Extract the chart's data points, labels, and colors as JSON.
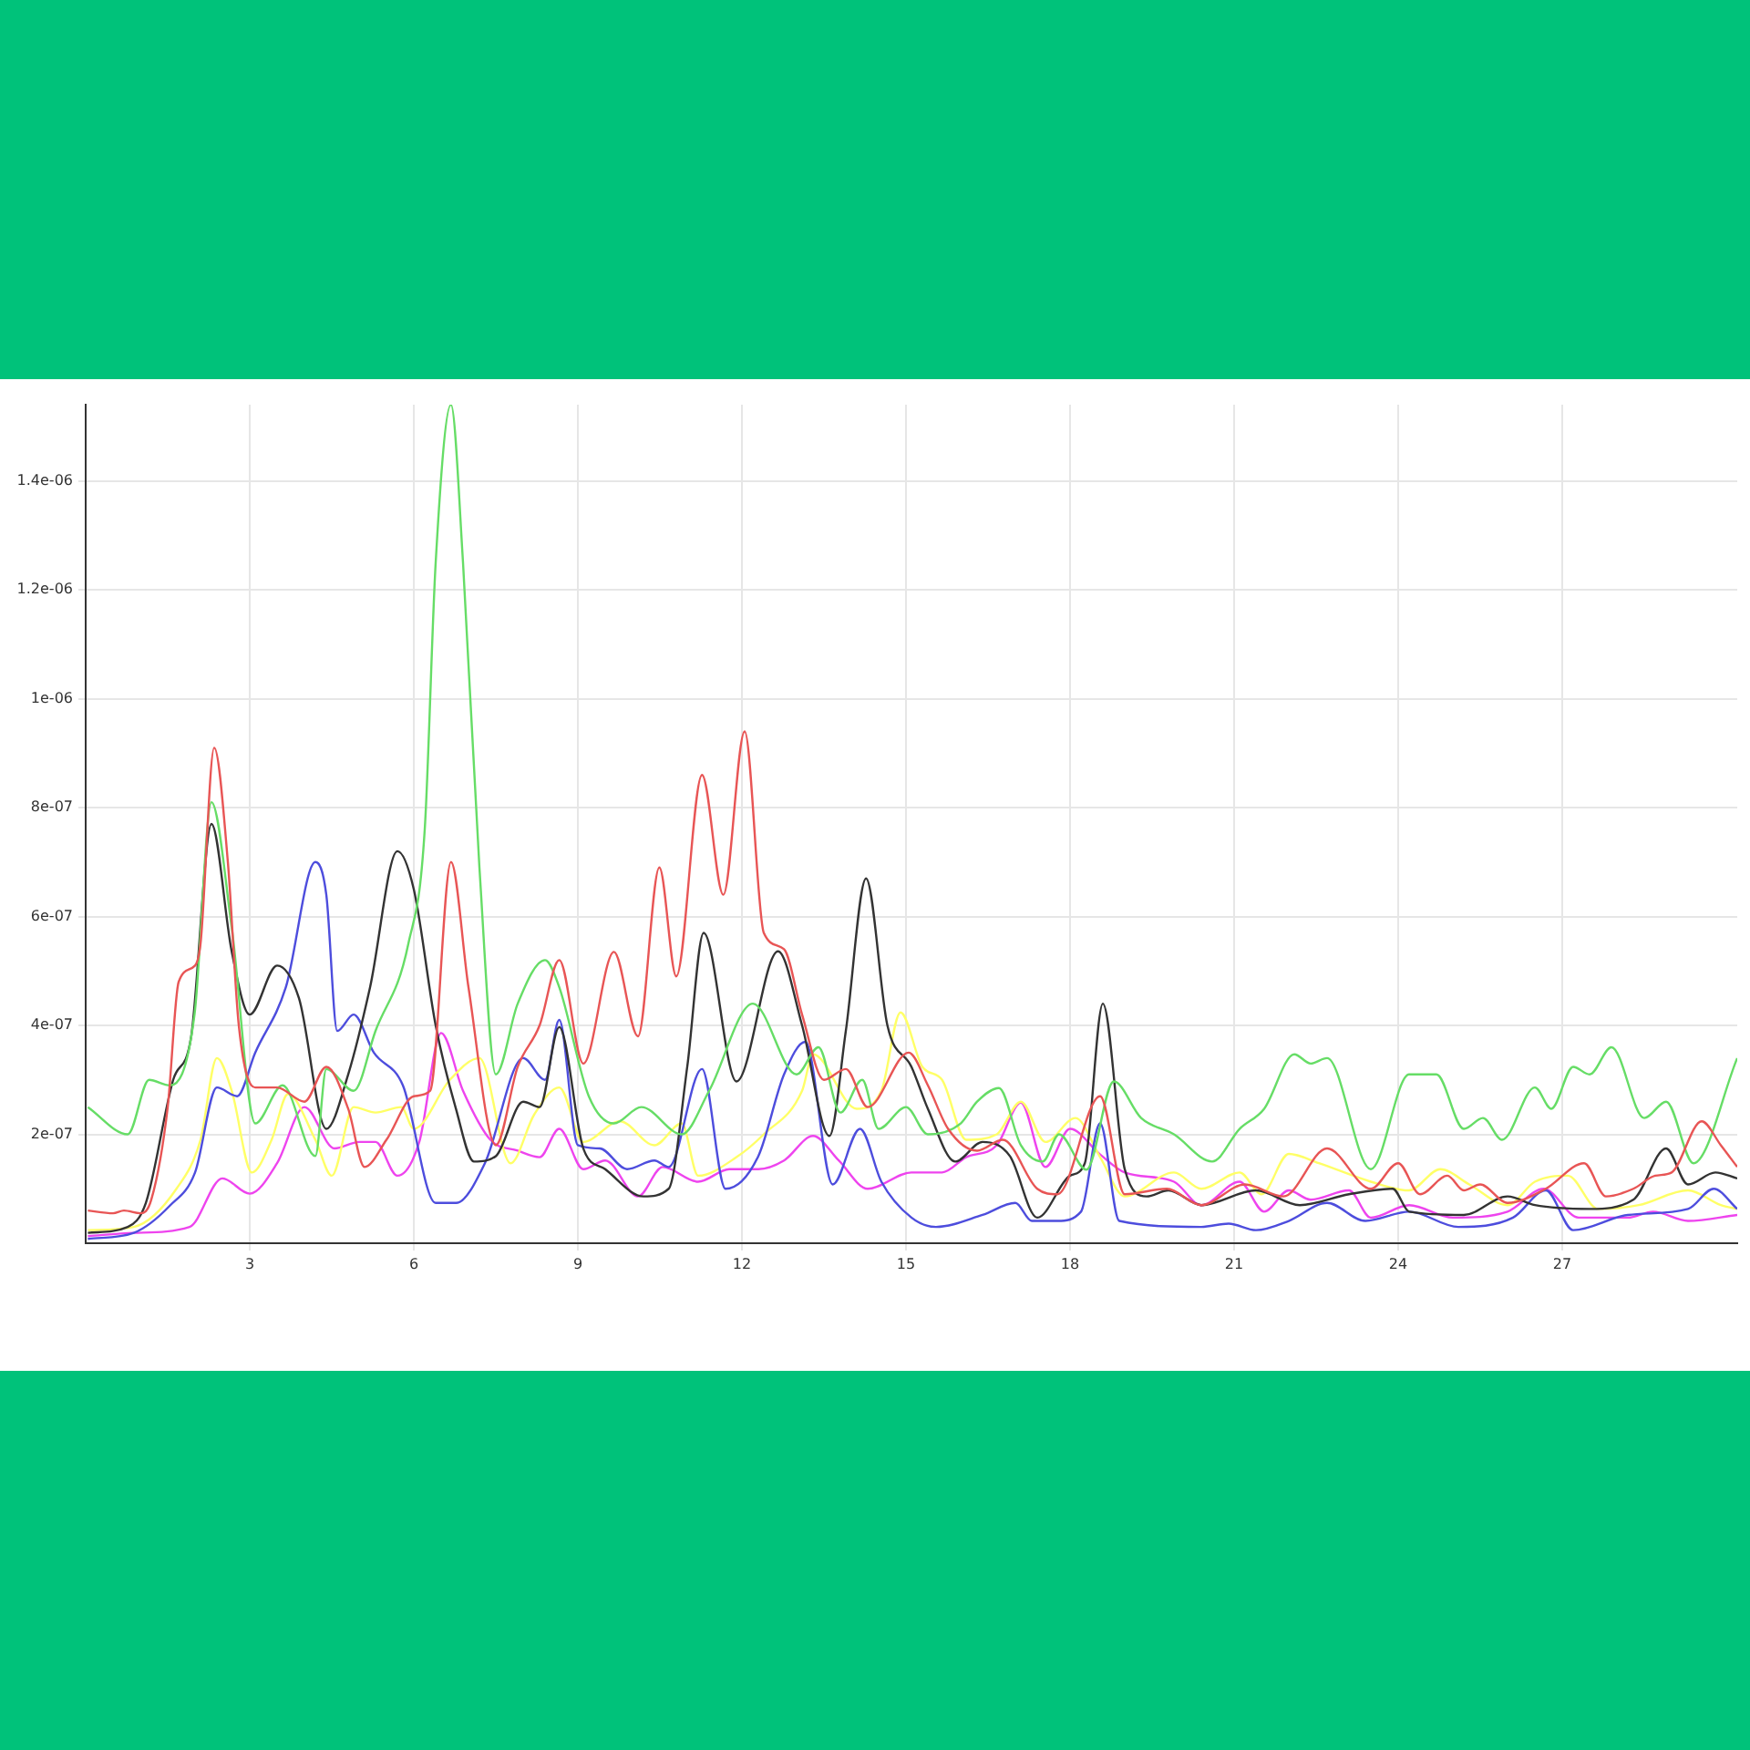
{
  "chart_data": {
    "type": "line",
    "xlim": [
      0,
      30.2
    ],
    "ylim": [
      0,
      1.54e-06
    ],
    "xticks": [
      3,
      6,
      9,
      12,
      15,
      18,
      21,
      24,
      27
    ],
    "yticks": [
      {
        "value": 2e-07,
        "label": "2e-07"
      },
      {
        "value": 4e-07,
        "label": "4e-07"
      },
      {
        "value": 6e-07,
        "label": "6e-07"
      },
      {
        "value": 8e-07,
        "label": "8e-07"
      },
      {
        "value": 1e-06,
        "label": "1e-06"
      },
      {
        "value": 1.2e-06,
        "label": "1.2e-06"
      },
      {
        "value": 1.4e-06,
        "label": "1.4e-06"
      }
    ],
    "grid": true,
    "series": [
      {
        "color": "#e85555",
        "x": [
          0.04,
          0.5,
          0.7,
          1.0,
          1.2,
          1.5,
          1.7,
          2.0,
          2.1,
          2.35,
          2.6,
          2.8,
          3.1,
          3.5,
          4.0,
          4.4,
          4.8,
          5.1,
          5.5,
          6.0,
          6.3,
          6.68,
          7.0,
          7.5,
          7.9,
          8.3,
          8.66,
          9.1,
          9.66,
          10.1,
          10.49,
          10.8,
          11.27,
          11.66,
          12.05,
          12.4,
          12.77,
          13.1,
          13.5,
          13.9,
          14.3,
          15.05,
          15.4,
          15.77,
          16.3,
          16.77,
          17.4,
          17.77,
          18.55,
          19.0,
          19.77,
          20.4,
          21.2,
          21.9,
          22.7,
          23.5,
          24.0,
          24.4,
          24.9,
          25.2,
          25.5,
          26.0,
          26.7,
          27.4,
          27.8,
          28.3,
          28.7,
          29.0,
          29.55,
          29.9,
          30.2
        ],
        "values": [
          6e-08,
          5.5e-08,
          6e-08,
          5.5e-08,
          8e-08,
          2.5e-07,
          4.8e-07,
          5.1e-07,
          5.5e-07,
          9.1e-07,
          7e-07,
          4e-07,
          2.86e-07,
          2.86e-07,
          2.6e-07,
          3.24e-07,
          2.47e-07,
          1.4e-07,
          1.9e-07,
          2.7e-07,
          2.8e-07,
          7e-07,
          4.7e-07,
          1.8e-07,
          3.24e-07,
          4e-07,
          5.2e-07,
          3.3e-07,
          5.35e-07,
          3.8e-07,
          6.9e-07,
          4.9e-07,
          8.6e-07,
          6.4e-07,
          9.4e-07,
          5.7e-07,
          5.4e-07,
          4.2e-07,
          3e-07,
          3.2e-07,
          2.5e-07,
          3.5e-07,
          2.9e-07,
          2.1e-07,
          1.7e-07,
          1.9e-07,
          1e-07,
          9e-08,
          2.7e-07,
          9e-08,
          1e-07,
          7e-08,
          1.08e-07,
          8.6e-08,
          1.74e-07,
          1e-07,
          1.47e-07,
          9e-08,
          1.24e-07,
          9.7e-08,
          1.08e-07,
          7.4e-08,
          1e-07,
          1.47e-07,
          8.6e-08,
          1e-07,
          1.24e-07,
          1.3e-07,
          2.24e-07,
          1.8e-07,
          1.4e-07
        ]
      },
      {
        "color": "#66dd66",
        "x": [
          0.04,
          0.77,
          1.16,
          1.54,
          1.99,
          2.3,
          2.67,
          3.1,
          3.6,
          4.2,
          4.4,
          4.9,
          5.3,
          5.9,
          6.2,
          6.4,
          6.68,
          6.9,
          7.2,
          7.5,
          7.9,
          8.4,
          8.66,
          9.2,
          9.66,
          10.16,
          10.9,
          11.4,
          12.2,
          13.0,
          13.4,
          13.8,
          14.2,
          14.5,
          15.0,
          15.4,
          16.0,
          16.3,
          16.7,
          17.1,
          17.5,
          17.8,
          18.3,
          18.8,
          19.3,
          19.9,
          20.6,
          21.1,
          21.55,
          22.1,
          22.4,
          22.7,
          23.5,
          24.2,
          24.7,
          25.2,
          25.55,
          25.9,
          26.5,
          26.8,
          27.2,
          27.5,
          27.9,
          28.5,
          28.9,
          29.4,
          30.2
        ],
        "values": [
          2.5e-07,
          2e-07,
          3e-07,
          2.9e-07,
          4.2e-07,
          8.1e-07,
          5.8e-07,
          2.2e-07,
          2.9e-07,
          1.6e-07,
          3.2e-07,
          2.8e-07,
          3.9e-07,
          5.5e-07,
          7.6e-07,
          1.25e-06,
          1.54e-06,
          1.25e-06,
          6.9e-07,
          3.1e-07,
          4.4e-07,
          5.2e-07,
          4.7e-07,
          2.7e-07,
          2.2e-07,
          2.5e-07,
          2e-07,
          2.8e-07,
          4.4e-07,
          3.1e-07,
          3.6e-07,
          2.4e-07,
          3e-07,
          2.1e-07,
          2.5e-07,
          2e-07,
          2.2e-07,
          2.6e-07,
          2.85e-07,
          1.8e-07,
          1.5e-07,
          2e-07,
          1.35e-07,
          2.97e-07,
          2.3e-07,
          2e-07,
          1.5e-07,
          2.1e-07,
          2.47e-07,
          3.47e-07,
          3.3e-07,
          3.4e-07,
          1.36e-07,
          3.1e-07,
          3.1e-07,
          2.1e-07,
          2.3e-07,
          1.9e-07,
          2.86e-07,
          2.47e-07,
          3.24e-07,
          3.1e-07,
          3.6e-07,
          2.3e-07,
          2.6e-07,
          1.47e-07,
          3.4e-07
        ]
      },
      {
        "color": "#333333",
        "x": [
          0.04,
          0.77,
          1.1,
          1.6,
          1.93,
          2.3,
          2.67,
          3.0,
          3.5,
          3.9,
          4.4,
          4.8,
          5.2,
          5.7,
          6.0,
          6.4,
          6.77,
          7.1,
          7.5,
          8.0,
          8.3,
          8.66,
          9.1,
          9.5,
          10.2,
          10.66,
          11.0,
          11.3,
          11.9,
          12.66,
          13.1,
          13.6,
          13.9,
          14.27,
          14.66,
          15.1,
          15.4,
          15.9,
          16.4,
          16.9,
          17.4,
          18.0,
          18.27,
          18.6,
          19.0,
          19.4,
          19.8,
          20.4,
          21.4,
          22.2,
          23.1,
          23.9,
          24.2,
          25.2,
          26.0,
          26.5,
          27.5,
          28.3,
          28.9,
          29.3,
          29.8,
          30.2
        ],
        "values": [
          1.9e-08,
          3e-08,
          7.4e-08,
          3e-07,
          3.8e-07,
          7.7e-07,
          5.36e-07,
          4.2e-07,
          5.1e-07,
          4.5e-07,
          2.1e-07,
          3.1e-07,
          4.7e-07,
          7.2e-07,
          6.5e-07,
          4e-07,
          2.47e-07,
          1.5e-07,
          1.6e-07,
          2.6e-07,
          2.5e-07,
          3.97e-07,
          1.74e-07,
          1.36e-07,
          8.6e-08,
          1e-07,
          3.24e-07,
          5.7e-07,
          2.97e-07,
          5.36e-07,
          4e-07,
          1.97e-07,
          3.9e-07,
          6.7e-07,
          4e-07,
          3.24e-07,
          2.47e-07,
          1.5e-07,
          1.86e-07,
          1.6e-07,
          4.7e-08,
          1.24e-07,
          1.47e-07,
          4.4e-07,
          1.36e-07,
          8.6e-08,
          9.7e-08,
          7e-08,
          9.7e-08,
          7e-08,
          9e-08,
          1e-07,
          5.8e-08,
          5.2e-08,
          8.6e-08,
          7e-08,
          6.3e-08,
          8e-08,
          1.74e-07,
          1.08e-07,
          1.3e-07,
          1.19e-07
        ]
      },
      {
        "color": "#4d4ddd",
        "x": [
          0.04,
          0.88,
          1.54,
          2.0,
          2.4,
          2.77,
          3.1,
          3.66,
          4.2,
          4.4,
          4.6,
          4.9,
          5.27,
          5.8,
          6.4,
          6.77,
          7.3,
          8.0,
          8.4,
          8.66,
          9.0,
          9.4,
          9.9,
          10.4,
          10.66,
          11.27,
          11.7,
          12.3,
          12.77,
          13.16,
          13.66,
          14.16,
          14.55,
          15.1,
          15.55,
          16.4,
          17.0,
          17.3,
          17.77,
          18.2,
          18.55,
          18.9,
          20.4,
          20.9,
          21.4,
          22.0,
          22.7,
          23.4,
          24.2,
          25.1,
          26.1,
          26.7,
          27.2,
          28.2,
          29.3,
          29.77,
          30.2
        ],
        "values": [
          8e-09,
          1.9e-08,
          6.9e-08,
          1.3e-07,
          2.86e-07,
          2.7e-07,
          3.5e-07,
          4.7e-07,
          7e-07,
          6.4e-07,
          3.9e-07,
          4.2e-07,
          3.5e-07,
          2.9e-07,
          7.4e-08,
          7.4e-08,
          1.47e-07,
          3.4e-07,
          3e-07,
          4.1e-07,
          1.8e-07,
          1.74e-07,
          1.36e-07,
          1.52e-07,
          1.4e-07,
          3.2e-07,
          1e-07,
          1.6e-07,
          3.1e-07,
          3.7e-07,
          1.08e-07,
          2.1e-07,
          1.13e-07,
          4.7e-08,
          3e-08,
          5.2e-08,
          7.4e-08,
          4.1e-08,
          4.1e-08,
          5.8e-08,
          2.2e-07,
          4.1e-08,
          3e-08,
          3.6e-08,
          2.4e-08,
          4.1e-08,
          7.4e-08,
          4.1e-08,
          5.8e-08,
          3e-08,
          4.7e-08,
          9.7e-08,
          2.4e-08,
          5.2e-08,
          6.3e-08,
          1e-07,
          6.3e-08
        ]
      },
      {
        "color": "#ffff66",
        "x": [
          0.04,
          0.88,
          1.66,
          2.1,
          2.4,
          2.67,
          3.04,
          3.4,
          3.7,
          4.2,
          4.5,
          4.9,
          5.3,
          5.77,
          6.0,
          6.66,
          7.2,
          7.77,
          8.2,
          8.66,
          9.1,
          9.77,
          10.4,
          10.9,
          11.2,
          11.9,
          12.4,
          13.1,
          13.3,
          14.1,
          14.55,
          14.9,
          15.3,
          15.66,
          16.1,
          16.66,
          17.1,
          17.55,
          18.1,
          18.55,
          19.0,
          19.9,
          20.4,
          21.1,
          21.5,
          22.0,
          22.55,
          23.5,
          24.2,
          24.77,
          25.3,
          26.0,
          26.5,
          27.1,
          27.66,
          28.4,
          29.3,
          29.9,
          30.2
        ],
        "values": [
          2.4e-08,
          3e-08,
          1e-07,
          1.9e-07,
          3.4e-07,
          2.8e-07,
          1.3e-07,
          1.9e-07,
          2.74e-07,
          1.9e-07,
          1.24e-07,
          2.5e-07,
          2.4e-07,
          2.5e-07,
          2.1e-07,
          3e-07,
          3.4e-07,
          1.47e-07,
          2.36e-07,
          2.86e-07,
          1.86e-07,
          2.24e-07,
          1.8e-07,
          2.2e-07,
          1.24e-07,
          1.58e-07,
          2e-07,
          2.8e-07,
          3.47e-07,
          2.47e-07,
          2.8e-07,
          4.24e-07,
          3.24e-07,
          3e-07,
          1.9e-07,
          2e-07,
          2.6e-07,
          1.86e-07,
          2.3e-07,
          1.58e-07,
          8.6e-08,
          1.3e-07,
          1e-07,
          1.3e-07,
          9e-08,
          1.64e-07,
          1.47e-07,
          1.13e-07,
          9.7e-08,
          1.36e-07,
          1.08e-07,
          7e-08,
          1.13e-07,
          1.24e-07,
          6.3e-08,
          7e-08,
          9.7e-08,
          7e-08,
          6.3e-08
        ]
      },
      {
        "color": "#ee44ee",
        "x": [
          0.04,
          0.88,
          1.9,
          2.5,
          3.0,
          3.5,
          4.0,
          4.55,
          5.0,
          5.3,
          5.7,
          6.1,
          6.5,
          6.9,
          7.4,
          7.9,
          8.3,
          8.66,
          9.1,
          9.5,
          10.1,
          10.55,
          11.2,
          11.77,
          12.3,
          12.77,
          13.3,
          13.77,
          14.3,
          15.1,
          15.66,
          16.1,
          16.66,
          17.1,
          17.55,
          18.0,
          18.55,
          19.0,
          19.9,
          20.4,
          21.1,
          21.55,
          22.0,
          22.4,
          23.1,
          23.5,
          24.2,
          25.0,
          26.0,
          26.66,
          27.3,
          28.2,
          28.66,
          29.3,
          30.2
        ],
        "values": [
          1.3e-08,
          1.9e-08,
          3e-08,
          1.19e-07,
          9.1e-08,
          1.47e-07,
          2.5e-07,
          1.74e-07,
          1.86e-07,
          1.86e-07,
          1.24e-07,
          1.86e-07,
          3.86e-07,
          2.8e-07,
          1.9e-07,
          1.7e-07,
          1.58e-07,
          2.1e-07,
          1.36e-07,
          1.52e-07,
          8.6e-08,
          1.4e-07,
          1.13e-07,
          1.36e-07,
          1.36e-07,
          1.52e-07,
          1.97e-07,
          1.52e-07,
          1e-07,
          1.3e-07,
          1.3e-07,
          1.58e-07,
          1.8e-07,
          2.58e-07,
          1.4e-07,
          2.1e-07,
          1.63e-07,
          1.3e-07,
          1.13e-07,
          7e-08,
          1.13e-07,
          5.8e-08,
          9.7e-08,
          8e-08,
          9.7e-08,
          4.7e-08,
          7e-08,
          4.7e-08,
          5.8e-08,
          1e-07,
          4.7e-08,
          4.7e-08,
          5.8e-08,
          4.1e-08,
          5.2e-08
        ]
      }
    ]
  }
}
